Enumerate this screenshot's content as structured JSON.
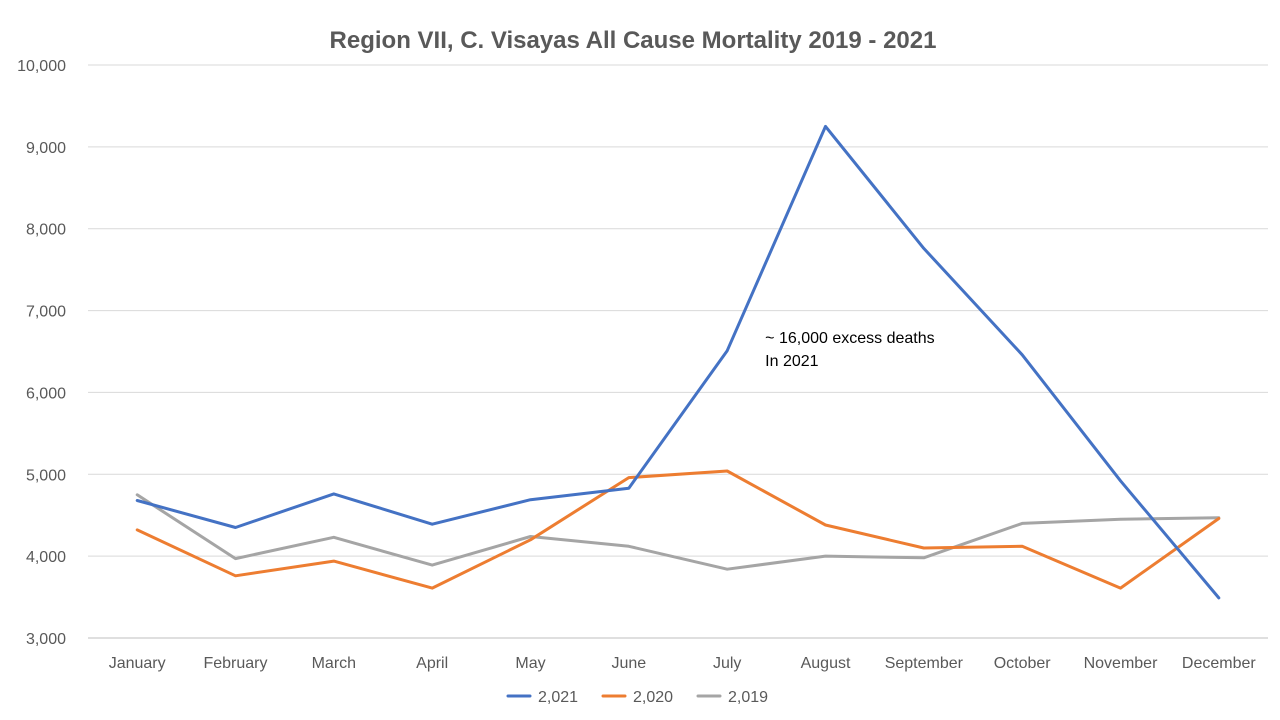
{
  "chart_data": {
    "type": "line",
    "title": "Region VII, C. Visayas All Cause Mortality 2019 - 2021",
    "xlabel": "",
    "ylabel": "",
    "categories": [
      "January",
      "February",
      "March",
      "April",
      "May",
      "June",
      "July",
      "August",
      "September",
      "October",
      "November",
      "December"
    ],
    "ylim": [
      3000,
      10000
    ],
    "yticks": [
      3000,
      4000,
      5000,
      6000,
      7000,
      8000,
      9000,
      10000
    ],
    "ytick_labels": [
      "3,000",
      "4,000",
      "5,000",
      "6,000",
      "7,000",
      "8,000",
      "9,000",
      "10,000"
    ],
    "grid": true,
    "legend_position": "bottom",
    "series": [
      {
        "name": "2,021",
        "color": "#4472C4",
        "values": [
          4680,
          4350,
          4760,
          4390,
          4690,
          4830,
          6510,
          9250,
          7760,
          6460,
          4920,
          3490
        ]
      },
      {
        "name": "2,020",
        "color": "#ED7D31",
        "values": [
          4320,
          3760,
          3940,
          3610,
          4200,
          4960,
          5040,
          4380,
          4100,
          4120,
          3610,
          4460
        ]
      },
      {
        "name": "2,019",
        "color": "#A5A5A5",
        "values": [
          4750,
          3970,
          4230,
          3890,
          4240,
          4120,
          3840,
          4000,
          3980,
          4400,
          4450,
          4470
        ]
      }
    ],
    "annotations": [
      {
        "lines": [
          "~ 16,000 excess deaths",
          "In 2021"
        ],
        "month": "July",
        "value": 6750
      }
    ]
  }
}
